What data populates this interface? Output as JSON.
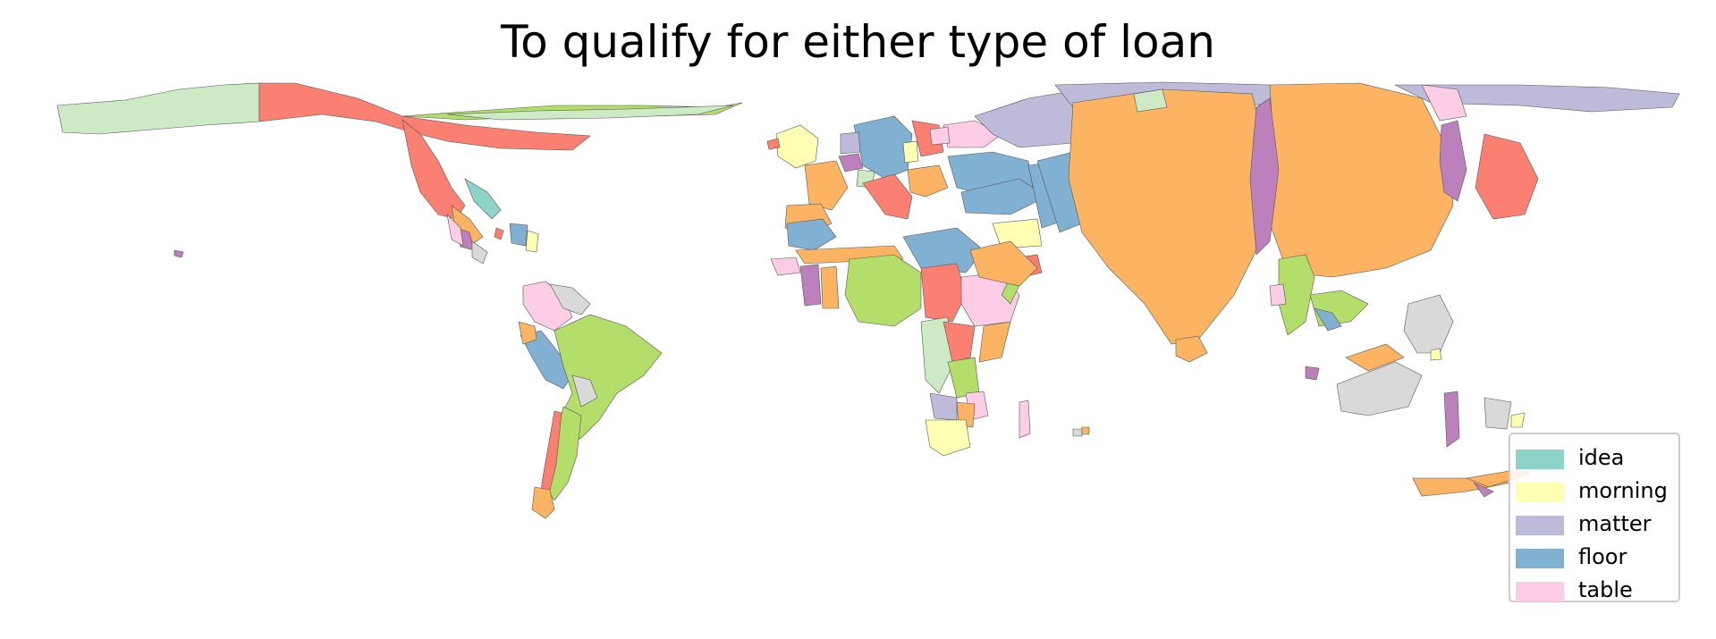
{
  "title": "To qualify for either type of loan",
  "legend": {
    "items": [
      {
        "label": "idea",
        "color": "#8dd3c7"
      },
      {
        "label": "morning",
        "color": "#ffffb3"
      },
      {
        "label": "matter",
        "color": "#bebada"
      },
      {
        "label": "floor",
        "color": "#80b1d3"
      },
      {
        "label": "table",
        "color": "#fccde5"
      }
    ]
  },
  "palette": {
    "idea": "#8dd3c7",
    "morning": "#ffffb3",
    "matter": "#bebada",
    "red": "#fb8072",
    "floor": "#80b1d3",
    "orange": "#fdb462",
    "green": "#b3de69",
    "table": "#fccde5",
    "grey": "#d9d9d9",
    "purple": "#bc80bd",
    "mint": "#ccebc5",
    "outline": "#555555"
  }
}
